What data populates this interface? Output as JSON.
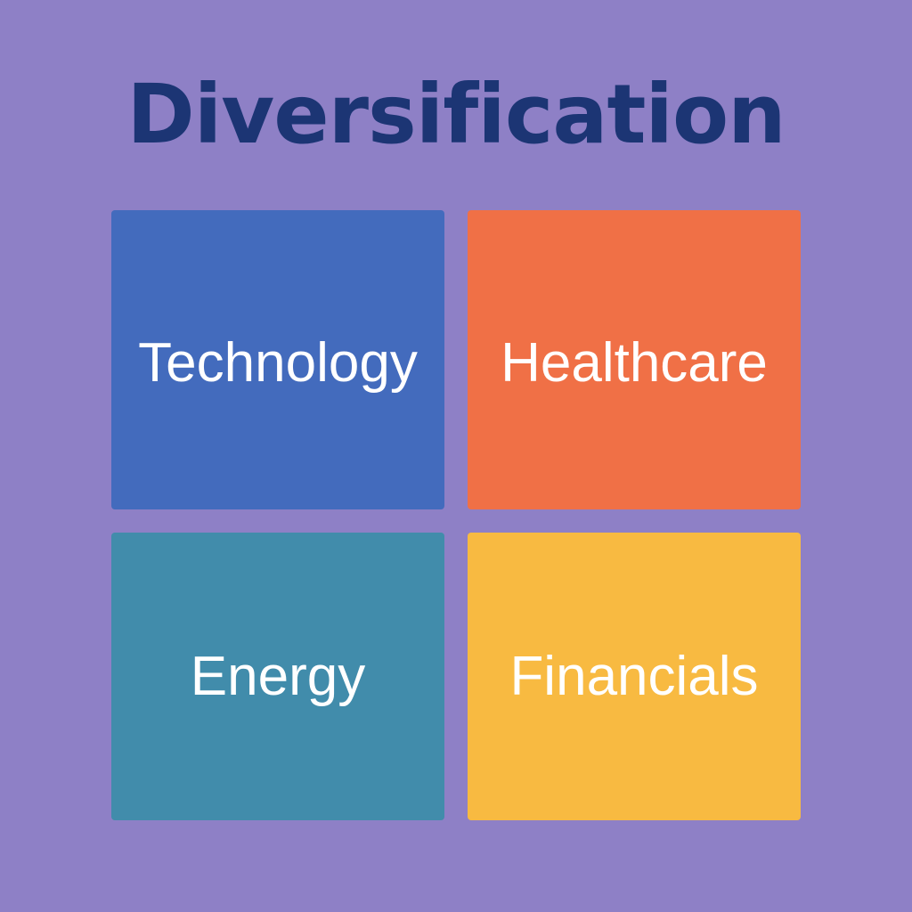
{
  "title": "Diversification",
  "colors": {
    "background": "#8e80c6",
    "title": "#1c3574",
    "label": "#ffffff"
  },
  "sectors": [
    {
      "label": "Technology",
      "color": "#436bbd"
    },
    {
      "label": "Healthcare",
      "color": "#f07046"
    },
    {
      "label": "Energy",
      "color": "#418cab"
    },
    {
      "label": "Financials",
      "color": "#f8ba41"
    }
  ]
}
